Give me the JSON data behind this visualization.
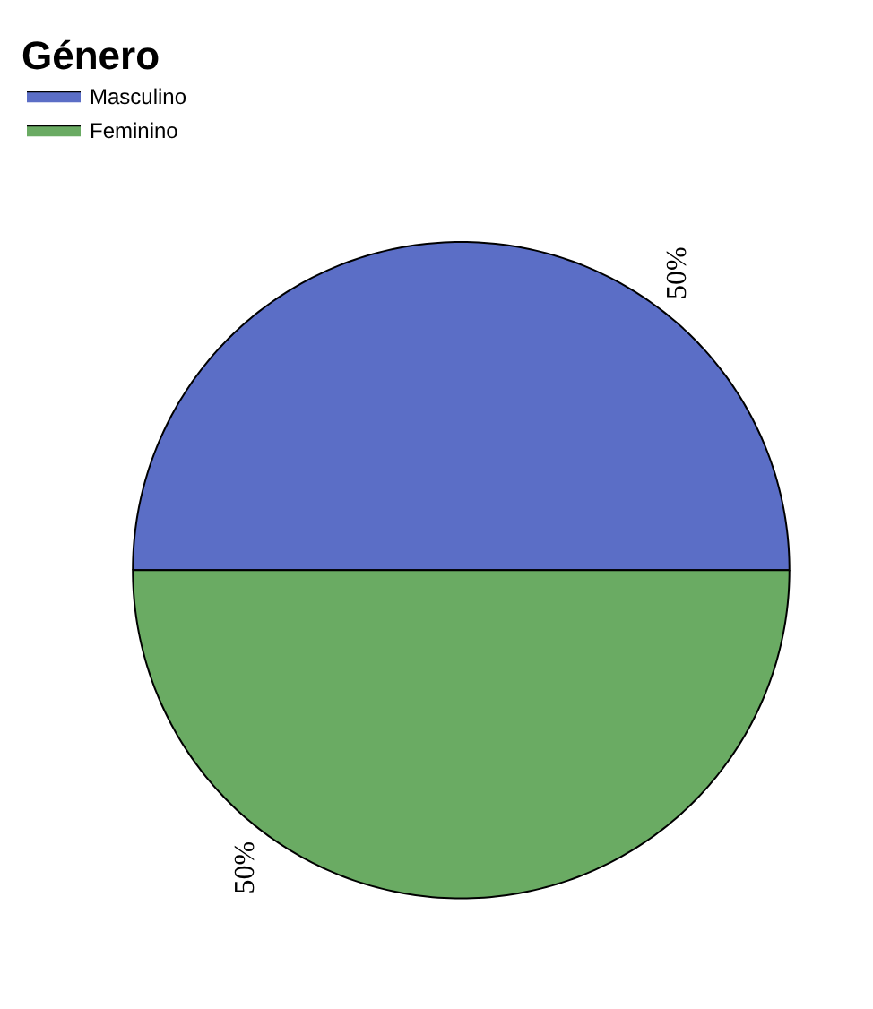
{
  "chart_data": {
    "type": "pie",
    "legend_title": "Género",
    "categories": [
      "Masculino",
      "Feminino"
    ],
    "values": [
      50,
      50
    ],
    "colors": [
      "#5b6ec6",
      "#6aab63"
    ],
    "value_labels": [
      "50%",
      "50%"
    ],
    "legend": "top left"
  }
}
